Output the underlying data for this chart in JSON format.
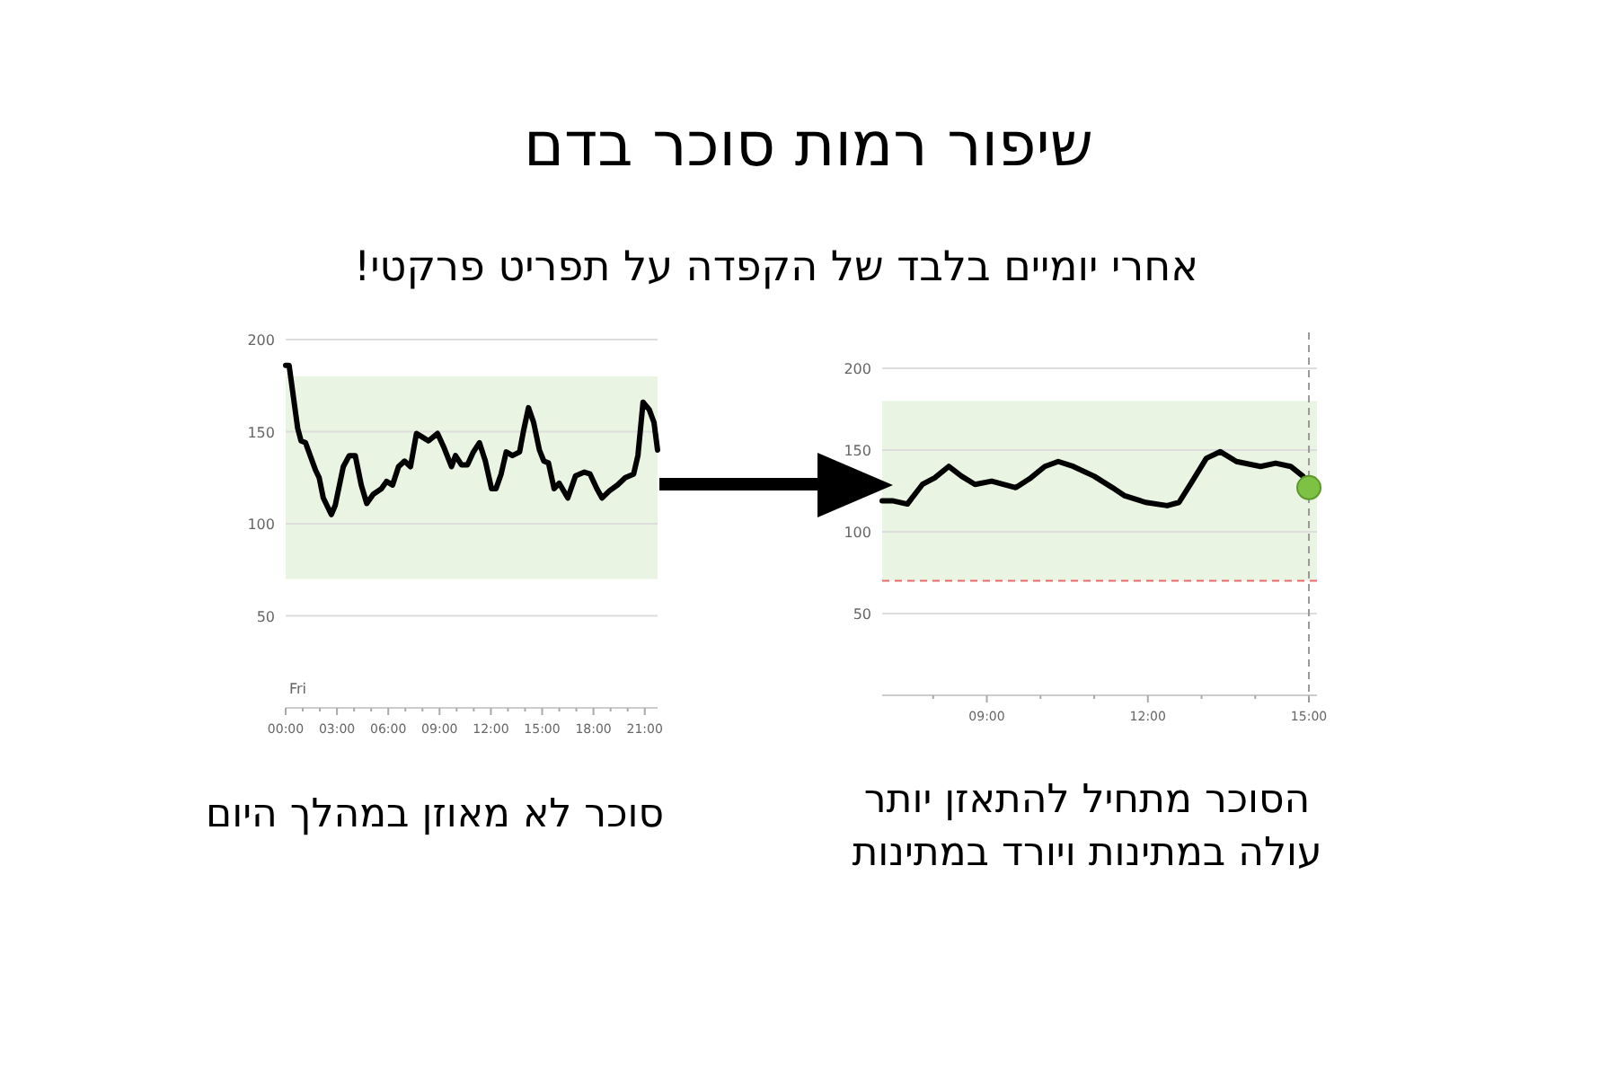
{
  "chart_data": [
    {
      "type": "line",
      "title": "שיפור רמות סוכר בדם",
      "subtitle": "אחרי יומיים בלבד של הקפדה על תפריט פרקטי!",
      "annotations": [
        "Fri",
        "סוכר לא מאוזן במהלך היום"
      ],
      "xlim": [
        0,
        21.75
      ],
      "ylim": [
        0,
        200
      ],
      "xticks": [
        {
          "value": 0,
          "label": "00:00"
        },
        {
          "value": 1,
          "label": null
        },
        {
          "value": 2,
          "label": null
        },
        {
          "value": 3,
          "label": "03:00"
        },
        {
          "value": 4,
          "label": null
        },
        {
          "value": 5,
          "label": null
        },
        {
          "value": 6,
          "label": "06:00"
        },
        {
          "value": 7,
          "label": null
        },
        {
          "value": 8,
          "label": null
        },
        {
          "value": 9,
          "label": "09:00"
        },
        {
          "value": 10,
          "label": null
        },
        {
          "value": 11,
          "label": null
        },
        {
          "value": 12,
          "label": "12:00"
        },
        {
          "value": 13,
          "label": null
        },
        {
          "value": 14,
          "label": null
        },
        {
          "value": 15,
          "label": "15:00"
        },
        {
          "value": 16,
          "label": null
        },
        {
          "value": 17,
          "label": null
        },
        {
          "value": 18,
          "label": "18:00"
        },
        {
          "value": 19,
          "label": null
        },
        {
          "value": 20,
          "label": null
        },
        {
          "value": 21,
          "label": "21:00"
        }
      ],
      "yticks": [
        50,
        100,
        150,
        200
      ],
      "grid": "y",
      "marker": "none",
      "line_style": "solid",
      "bands": [
        {
          "axis": "y",
          "from": 70,
          "to": 180,
          "color": "#eaf4e2"
        }
      ],
      "series": [
        {
          "color": "#000000",
          "x": [
            0,
            0.2,
            0.7,
            0.9,
            1.16,
            1.75,
            1.96,
            2.2,
            2.67,
            2.9,
            3.37,
            3.72,
            4.07,
            4.42,
            4.74,
            5.12,
            5.6,
            5.9,
            6.25,
            6.6,
            6.95,
            7.3,
            7.65,
            8.0,
            8.35,
            8.88,
            9.23,
            9.7,
            9.93,
            10.28,
            10.63,
            10.98,
            11.33,
            11.68,
            12.04,
            12.3,
            12.6,
            12.9,
            13.26,
            13.68,
            13.9,
            14.2,
            14.5,
            14.84,
            15.1,
            15.37,
            15.7,
            16.0,
            16.5,
            16.95,
            17.47,
            17.8,
            18.2,
            18.5,
            18.95,
            19.4,
            19.86,
            20.35,
            20.6,
            20.9,
            21.26,
            21.54,
            21.75
          ],
          "values": [
            186,
            186,
            152,
            145,
            144,
            129,
            125,
            114,
            105,
            110,
            131,
            137,
            137,
            121,
            111,
            116,
            119,
            123,
            121,
            131,
            134,
            131,
            149,
            147,
            145,
            149,
            142,
            131,
            137,
            132,
            132,
            139,
            144,
            134,
            119,
            119,
            127,
            139,
            137,
            139,
            150,
            163,
            155,
            140,
            134,
            133,
            119,
            122,
            114,
            126,
            128,
            127,
            119,
            114,
            118,
            121,
            125,
            127,
            137,
            166,
            162,
            155,
            140
          ]
        }
      ]
    },
    {
      "type": "line",
      "annotations": [
        "הסוכר מתחיל להתאזן יותר\nעולה במתינות ויורד במתינות"
      ],
      "xlim": [
        7.05,
        15.15
      ],
      "ylim": [
        0,
        200
      ],
      "xticks": [
        {
          "value": 8,
          "label": null
        },
        {
          "value": 9,
          "label": "09:00"
        },
        {
          "value": 10,
          "label": null
        },
        {
          "value": 11,
          "label": null
        },
        {
          "value": 12,
          "label": "12:00"
        },
        {
          "value": 13,
          "label": null
        },
        {
          "value": 14,
          "label": null
        },
        {
          "value": 15,
          "label": "15:00"
        }
      ],
      "yticks": [
        50,
        100,
        150,
        200
      ],
      "grid": "y",
      "marker": "none",
      "line_style": "solid",
      "bands": [
        {
          "axis": "y",
          "from": 70,
          "to": 180,
          "color": "#eaf4e2"
        }
      ],
      "ref_lines": [
        {
          "axis": "y",
          "value": 70,
          "color": "#e86a6a",
          "line_style": "dashed"
        },
        {
          "axis": "x",
          "value": 15,
          "color": "#999999",
          "line_style": "dashed"
        }
      ],
      "series": [
        {
          "color": "#000000",
          "x": [
            7.05,
            7.24,
            7.52,
            7.8,
            8.03,
            8.29,
            8.53,
            8.78,
            9.09,
            9.54,
            9.82,
            10.08,
            10.33,
            10.61,
            11.0,
            11.34,
            11.57,
            11.96,
            12.36,
            12.58,
            12.81,
            13.09,
            13.35,
            13.65,
            14.1,
            14.38,
            14.66,
            14.89,
            15
          ],
          "values": [
            119,
            119,
            117,
            129,
            133,
            140,
            134,
            129,
            131,
            127,
            133,
            140,
            143,
            140,
            134,
            127,
            122,
            118,
            116,
            118,
            130,
            145,
            149,
            143,
            140,
            142,
            140,
            134,
            127
          ]
        },
        {
          "type": "scatter",
          "marker": "circle",
          "color": "#7dc242",
          "x": [
            15
          ],
          "values": [
            127
          ]
        }
      ]
    }
  ]
}
